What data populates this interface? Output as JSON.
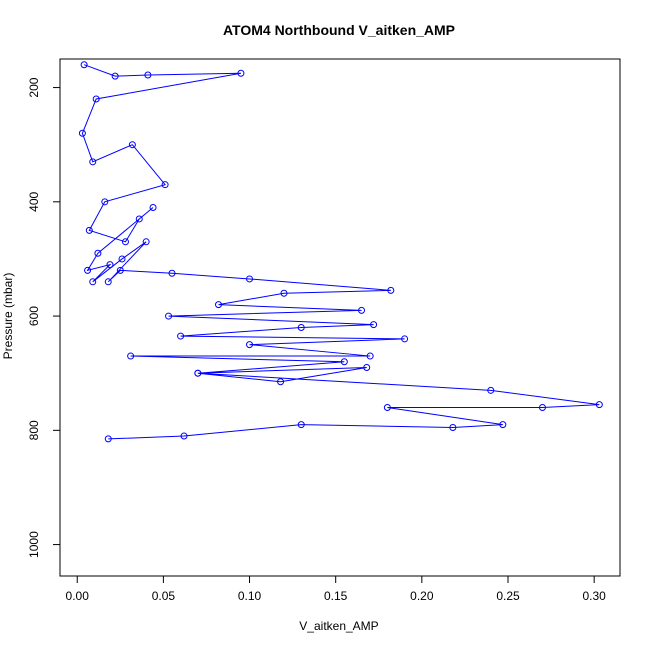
{
  "chart_data": {
    "type": "scatter",
    "title": "ATOM4 Northbound V_aitken_AMP",
    "xlabel": "V_aitken_AMP",
    "ylabel": "Pressure (mbar)",
    "xlim": [
      -0.01,
      0.315
    ],
    "ylim": [
      1055,
      150
    ],
    "y_reversed": true,
    "x_ticks": [
      {
        "value": 0.0,
        "label": "0.00"
      },
      {
        "value": 0.05,
        "label": "0.05"
      },
      {
        "value": 0.1,
        "label": "0.10"
      },
      {
        "value": 0.15,
        "label": "0.15"
      },
      {
        "value": 0.2,
        "label": "0.20"
      },
      {
        "value": 0.25,
        "label": "0.25"
      },
      {
        "value": 0.3,
        "label": "0.30"
      }
    ],
    "y_ticks": [
      {
        "value": 200,
        "label": "200"
      },
      {
        "value": 400,
        "label": "400"
      },
      {
        "value": 600,
        "label": "600"
      },
      {
        "value": 800,
        "label": "800"
      },
      {
        "value": 1000,
        "label": "1000"
      }
    ],
    "grid": false,
    "marker": "open-circle",
    "line": true,
    "color": "#0000ff",
    "series": [
      {
        "x": [
          0.004,
          0.022,
          0.041,
          0.095,
          0.011,
          0.003,
          0.009,
          0.032,
          0.051,
          0.016,
          0.007,
          0.028,
          0.036,
          0.044,
          0.012,
          0.006,
          0.019,
          0.009,
          0.026,
          0.04,
          0.018,
          0.025,
          0.055,
          0.1,
          0.182,
          0.12,
          0.082,
          0.165,
          0.053,
          0.172,
          0.13,
          0.06,
          0.19,
          0.1,
          0.17,
          0.031,
          0.155,
          0.07,
          0.168,
          0.118,
          0.07,
          0.24,
          0.303,
          0.27,
          0.18,
          0.247,
          0.218,
          0.13,
          0.062,
          0.018
        ],
        "y": [
          160,
          180,
          178,
          175,
          220,
          280,
          330,
          300,
          370,
          400,
          450,
          470,
          430,
          410,
          490,
          520,
          510,
          540,
          500,
          470,
          540,
          520,
          525,
          535,
          555,
          560,
          580,
          590,
          600,
          615,
          620,
          635,
          640,
          650,
          670,
          670,
          680,
          700,
          690,
          715,
          700,
          730,
          755,
          760,
          760,
          790,
          795,
          790,
          810,
          815
        ]
      }
    ]
  }
}
